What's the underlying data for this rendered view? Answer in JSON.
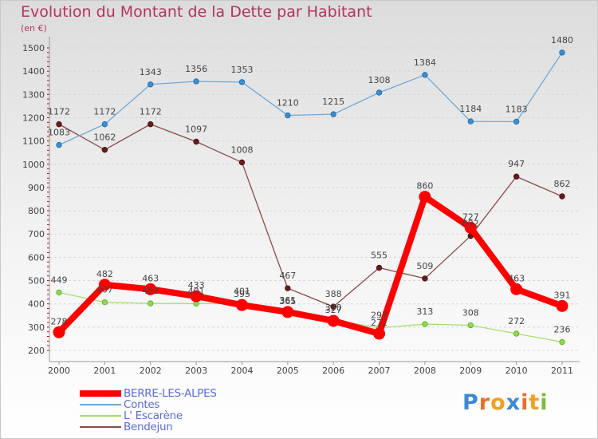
{
  "title": "Evolution du Montant de la Dette par Habitant",
  "subtitle": "(en €)",
  "brand": {
    "text": "Proxiti",
    "letter_colors": [
      "#3d8ad0",
      "#e8702a",
      "#f0a020",
      "#3d8ad0",
      "#e8702a",
      "#f0a020",
      "#7cbd36"
    ]
  },
  "chart_data": {
    "type": "line",
    "title": "Evolution du Montant de la Dette par Habitant",
    "subtitle": "(en €)",
    "x": [
      "2000",
      "2001",
      "2002",
      "2003",
      "2004",
      "2005",
      "2006",
      "2007",
      "2008",
      "2009",
      "2010",
      "2011"
    ],
    "ylim": [
      200,
      1500
    ],
    "yticks": [
      200,
      300,
      400,
      500,
      600,
      700,
      800,
      900,
      1000,
      1100,
      1200,
      1300,
      1400,
      1500
    ],
    "grid": "horizontal",
    "legend_position": "bottom-left",
    "series": [
      {
        "name": "BERRE-LES-ALPES",
        "color": "#ff0000",
        "values": [
          278,
          482,
          463,
          433,
          395,
          365,
          327,
          272,
          860,
          727,
          463,
          391
        ],
        "labels": [
          "278",
          "482",
          "463",
          "433",
          "395",
          "365",
          "327",
          "272",
          "860",
          "727",
          "463",
          "391"
        ]
      },
      {
        "name": "Contes",
        "color": "#6fa8d8",
        "values": [
          1083,
          1172,
          1343,
          1356,
          1353,
          1210,
          1215,
          1308,
          1384,
          1184,
          1183,
          1480
        ],
        "labels": [
          "1083",
          "1172",
          "1343",
          "1356",
          "1353",
          "1210",
          "1215",
          "1308",
          "1384",
          "1184",
          "1183",
          "1480"
        ]
      },
      {
        "name": "L' Escarène",
        "color": "#a6de72",
        "values": [
          449,
          407,
          402,
          401,
          401,
          361,
          330,
          297,
          313,
          308,
          272,
          236
        ],
        "labels": [
          "449",
          "407",
          "402",
          "401",
          "401",
          "361",
          "330",
          "297",
          "313",
          "308",
          "272",
          "236"
        ]
      },
      {
        "name": "Bendejun",
        "color": "#8b4a4a",
        "values": [
          1172,
          1062,
          1172,
          1097,
          1008,
          467,
          388,
          555,
          509,
          692,
          947,
          862
        ],
        "labels": [
          "1172",
          "1062",
          "1172",
          "1097",
          "1008",
          "467",
          "388",
          "555",
          "509",
          "692",
          "947",
          "862"
        ]
      }
    ]
  }
}
